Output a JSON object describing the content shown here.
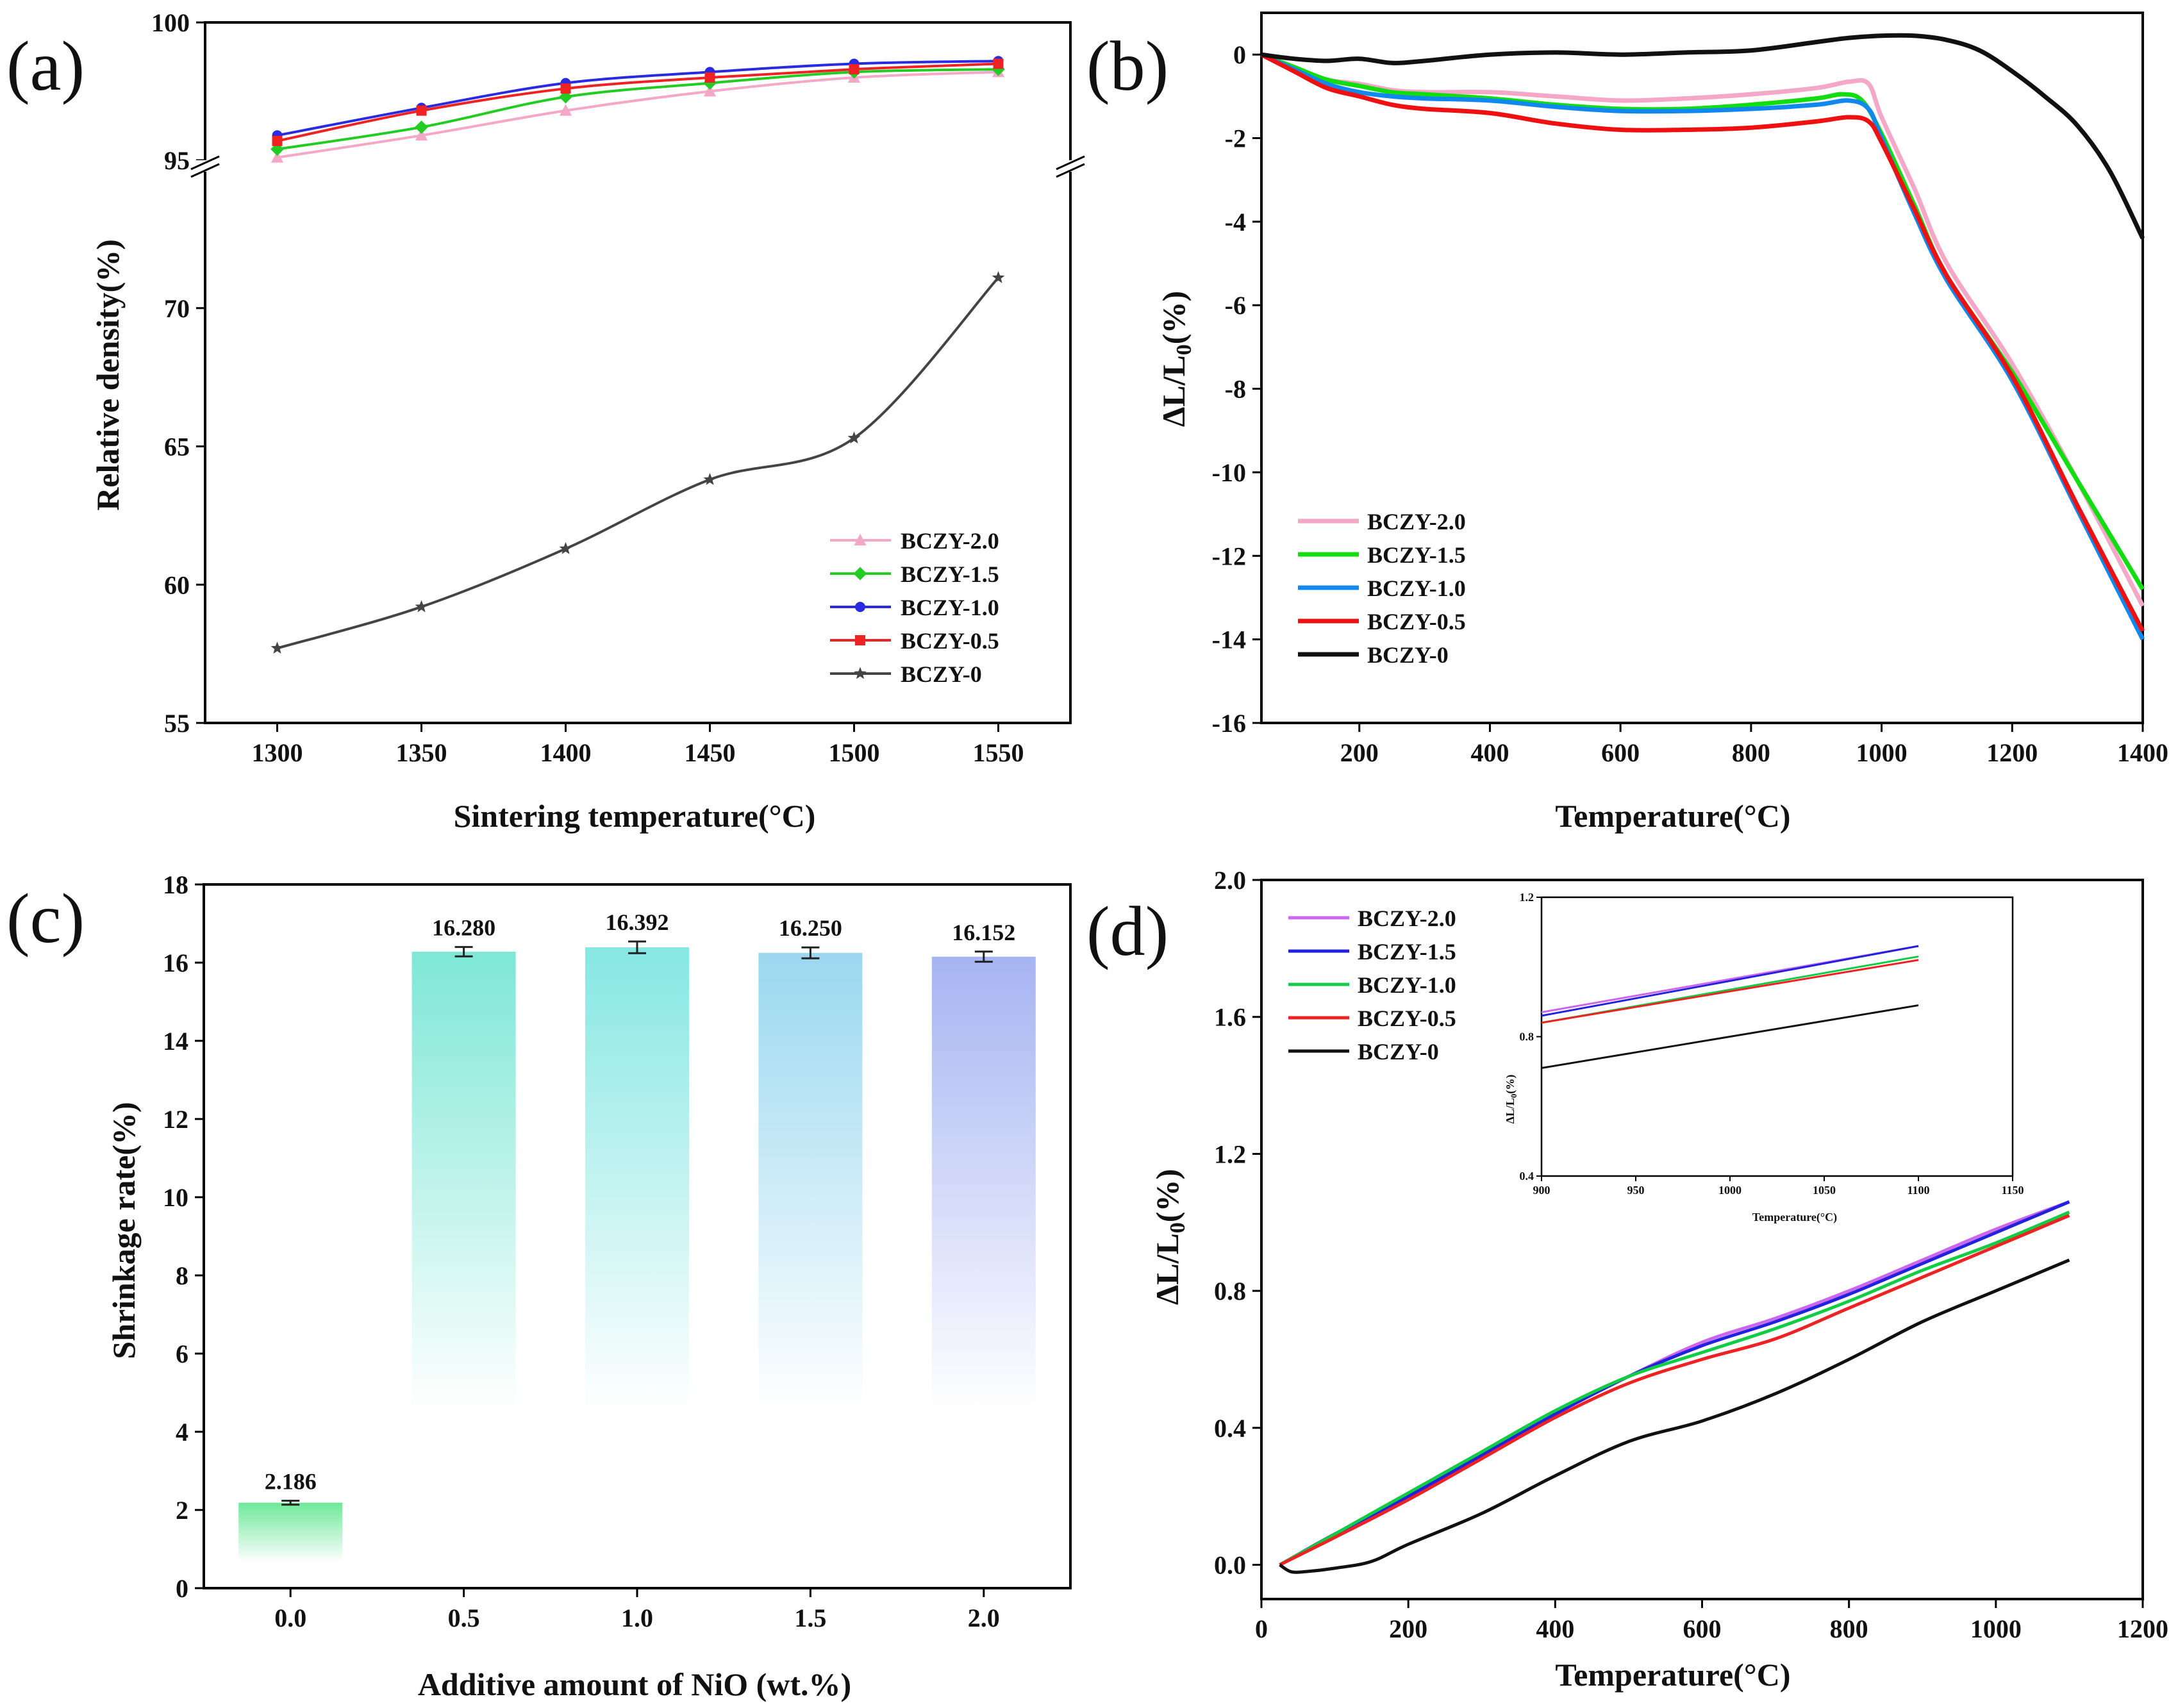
{
  "chart_data": [
    {
      "id": "a",
      "panel_label": "(a)",
      "type": "line",
      "xlabel": "Sintering temperature(°C)",
      "ylabel": "Relative density(%)",
      "x": [
        1300,
        1350,
        1400,
        1450,
        1500,
        1550
      ],
      "xlim": [
        1275,
        1575
      ],
      "xticks": [
        1300,
        1350,
        1400,
        1450,
        1500,
        1550
      ],
      "ylim_lower": [
        55,
        75
      ],
      "ylim_upper": [
        95,
        100
      ],
      "yticks": [
        55,
        60,
        65,
        70,
        95,
        100
      ],
      "axis_break": true,
      "legend_position": "bottom-right",
      "series": [
        {
          "name": "BCZY-2.0",
          "color": "#f4a7c6",
          "marker": "triangle",
          "values": [
            95.1,
            95.9,
            96.8,
            97.5,
            98.0,
            98.2
          ]
        },
        {
          "name": "BCZY-1.5",
          "color": "#22cc22",
          "marker": "diamond",
          "values": [
            95.4,
            96.2,
            97.3,
            97.8,
            98.2,
            98.3
          ]
        },
        {
          "name": "BCZY-1.0",
          "color": "#2a2ae0",
          "marker": "circle",
          "values": [
            95.9,
            96.9,
            97.8,
            98.2,
            98.5,
            98.6
          ]
        },
        {
          "name": "BCZY-0.5",
          "color": "#ee2222",
          "marker": "square",
          "values": [
            95.7,
            96.8,
            97.6,
            98.0,
            98.3,
            98.5
          ]
        },
        {
          "name": "BCZY-0",
          "color": "#444444",
          "marker": "star",
          "values": [
            57.7,
            59.2,
            61.3,
            63.8,
            65.3,
            71.1
          ]
        }
      ]
    },
    {
      "id": "b",
      "panel_label": "(b)",
      "type": "line",
      "xlabel": "Temperature(°C)",
      "ylabel_main": "ΔL/L",
      "ylabel_sub": "0",
      "ylabel_tail": "(%)",
      "xlim": [
        50,
        1400
      ],
      "xticks": [
        200,
        400,
        600,
        800,
        1000,
        1200,
        1400
      ],
      "ylim": [
        -16,
        1
      ],
      "yticks": [
        -16,
        -14,
        -12,
        -10,
        -8,
        -6,
        -4,
        -2,
        0
      ],
      "legend_position": "bottom-left",
      "series": [
        {
          "name": "BCZY-2.0",
          "color": "#f4a7c6",
          "x": [
            50,
            100,
            150,
            200,
            250,
            300,
            400,
            500,
            600,
            700,
            800,
            900,
            950,
            980,
            1000,
            1050,
            1100,
            1200,
            1300,
            1400
          ],
          "values": [
            0,
            -0.3,
            -0.6,
            -0.7,
            -0.85,
            -0.9,
            -0.9,
            -1.0,
            -1.1,
            -1.05,
            -0.95,
            -0.8,
            -0.65,
            -0.7,
            -1.5,
            -3.2,
            -5.0,
            -7.4,
            -10.2,
            -13.2
          ]
        },
        {
          "name": "BCZY-1.5",
          "color": "#11dd11",
          "x": [
            50,
            100,
            150,
            200,
            250,
            300,
            400,
            500,
            600,
            700,
            800,
            900,
            940,
            970,
            1000,
            1050,
            1100,
            1200,
            1300,
            1400
          ],
          "values": [
            0,
            -0.3,
            -0.6,
            -0.75,
            -0.9,
            -0.95,
            -1.05,
            -1.2,
            -1.3,
            -1.3,
            -1.2,
            -1.05,
            -0.95,
            -1.1,
            -1.9,
            -3.6,
            -5.3,
            -7.6,
            -10.2,
            -12.8
          ]
        },
        {
          "name": "BCZY-1.0",
          "color": "#1188ee",
          "x": [
            50,
            100,
            150,
            200,
            250,
            300,
            400,
            500,
            600,
            700,
            800,
            900,
            950,
            980,
            1000,
            1050,
            1100,
            1200,
            1300,
            1400
          ],
          "values": [
            0,
            -0.35,
            -0.7,
            -0.9,
            -1.0,
            -1.05,
            -1.1,
            -1.25,
            -1.35,
            -1.35,
            -1.3,
            -1.2,
            -1.1,
            -1.3,
            -2.0,
            -3.8,
            -5.4,
            -7.8,
            -10.9,
            -14.0
          ]
        },
        {
          "name": "BCZY-0.5",
          "color": "#ee1111",
          "x": [
            50,
            100,
            150,
            200,
            250,
            300,
            400,
            500,
            600,
            700,
            800,
            900,
            950,
            980,
            1000,
            1050,
            1100,
            1200,
            1300,
            1400
          ],
          "values": [
            0,
            -0.4,
            -0.8,
            -1.0,
            -1.2,
            -1.3,
            -1.4,
            -1.65,
            -1.8,
            -1.8,
            -1.75,
            -1.6,
            -1.5,
            -1.6,
            -2.1,
            -3.7,
            -5.3,
            -7.7,
            -10.8,
            -13.8
          ]
        },
        {
          "name": "BCZY-0",
          "color": "#111111",
          "x": [
            50,
            100,
            150,
            200,
            250,
            300,
            400,
            500,
            600,
            700,
            800,
            900,
            950,
            1000,
            1050,
            1100,
            1150,
            1200,
            1250,
            1300,
            1350,
            1400
          ],
          "values": [
            0,
            -0.1,
            -0.15,
            -0.1,
            -0.2,
            -0.15,
            0,
            0.05,
            0,
            0.05,
            0.1,
            0.3,
            0.4,
            0.45,
            0.45,
            0.35,
            0.1,
            -0.4,
            -1.0,
            -1.7,
            -2.8,
            -4.4
          ]
        }
      ]
    },
    {
      "id": "c",
      "panel_label": "(c)",
      "type": "bar",
      "xlabel": "Additive amount of NiO (wt.%)",
      "ylabel": "Shrinkage rate(%)",
      "categories": [
        "0.0",
        "0.5",
        "1.0",
        "1.5",
        "2.0"
      ],
      "values": [
        2.186,
        16.28,
        16.392,
        16.25,
        16.152
      ],
      "value_labels": [
        "2.186",
        "16.280",
        "16.392",
        "16.250",
        "16.152"
      ],
      "errors": [
        0.05,
        0.12,
        0.15,
        0.14,
        0.13
      ],
      "colors": [
        "#6fe89a",
        "#7ee7d6",
        "#86e7e3",
        "#9ad8f0",
        "#a6b4f2"
      ],
      "ylim": [
        0,
        18
      ],
      "yticks": [
        0,
        2,
        4,
        6,
        8,
        10,
        12,
        14,
        16,
        18
      ]
    },
    {
      "id": "d",
      "panel_label": "(d)",
      "type": "line",
      "xlabel": "Temperature(°C)",
      "ylabel_main": "ΔL/L",
      "ylabel_sub": "0",
      "ylabel_tail": "(%)",
      "xlim": [
        0,
        1200
      ],
      "xticks": [
        0,
        200,
        400,
        600,
        800,
        1000,
        1200
      ],
      "ylim": [
        -0.1,
        2.0
      ],
      "yticks": [
        "0.0",
        "0.4",
        "0.8",
        "1.2",
        "1.6",
        "2.0"
      ],
      "legend_position": "top-left",
      "series": [
        {
          "name": "BCZY-2.0",
          "color": "#cc66ee",
          "x": [
            25,
            100,
            200,
            300,
            400,
            500,
            600,
            700,
            800,
            900,
            1000,
            1100
          ],
          "values": [
            0,
            0.09,
            0.2,
            0.32,
            0.44,
            0.55,
            0.65,
            0.72,
            0.8,
            0.89,
            0.98,
            1.06
          ]
        },
        {
          "name": "BCZY-1.5",
          "color": "#2222dd",
          "x": [
            25,
            100,
            200,
            300,
            400,
            500,
            600,
            700,
            800,
            900,
            1000,
            1100
          ],
          "values": [
            0,
            0.09,
            0.2,
            0.32,
            0.44,
            0.55,
            0.64,
            0.71,
            0.79,
            0.88,
            0.97,
            1.06
          ]
        },
        {
          "name": "BCZY-1.0",
          "color": "#11cc44",
          "x": [
            25,
            100,
            200,
            300,
            400,
            500,
            600,
            700,
            800,
            900,
            1000,
            1100
          ],
          "values": [
            0,
            0.09,
            0.21,
            0.33,
            0.45,
            0.55,
            0.62,
            0.69,
            0.77,
            0.86,
            0.94,
            1.03
          ]
        },
        {
          "name": "BCZY-0.5",
          "color": "#ee2222",
          "x": [
            25,
            100,
            200,
            300,
            400,
            500,
            600,
            700,
            800,
            900,
            1000,
            1100
          ],
          "values": [
            0,
            0.08,
            0.19,
            0.31,
            0.43,
            0.53,
            0.6,
            0.66,
            0.75,
            0.84,
            0.93,
            1.02
          ]
        },
        {
          "name": "BCZY-0",
          "color": "#111111",
          "x": [
            25,
            40,
            60,
            100,
            150,
            200,
            300,
            400,
            500,
            600,
            700,
            800,
            900,
            1000,
            1100
          ],
          "values": [
            0,
            -0.02,
            -0.02,
            -0.01,
            0.01,
            0.06,
            0.15,
            0.26,
            0.36,
            0.42,
            0.5,
            0.6,
            0.71,
            0.8,
            0.89
          ]
        }
      ],
      "inset": {
        "type": "line",
        "xlabel": "Temperature(°C)",
        "ylabel": "ΔL/L",
        "ylabel_sub": "0",
        "ylabel_tail": "(%)",
        "xlim": [
          900,
          1150
        ],
        "xticks": [
          900,
          950,
          1000,
          1050,
          1100,
          1150
        ],
        "ylim": [
          0.4,
          1.2
        ],
        "yticks": [
          "0.4",
          "0.8",
          "1.2"
        ],
        "series": [
          {
            "name": "BCZY-2.0",
            "color": "#cc66ee",
            "x": [
              900,
              1100
            ],
            "values": [
              0.87,
              1.06
            ]
          },
          {
            "name": "BCZY-1.5",
            "color": "#2222dd",
            "x": [
              900,
              1100
            ],
            "values": [
              0.86,
              1.06
            ]
          },
          {
            "name": "BCZY-1.0",
            "color": "#11cc44",
            "x": [
              900,
              1100
            ],
            "values": [
              0.84,
              1.03
            ]
          },
          {
            "name": "BCZY-0.5",
            "color": "#ee2222",
            "x": [
              900,
              1100
            ],
            "values": [
              0.84,
              1.02
            ]
          },
          {
            "name": "BCZY-0",
            "color": "#111111",
            "x": [
              900,
              1100
            ],
            "values": [
              0.71,
              0.89
            ]
          }
        ]
      }
    }
  ]
}
